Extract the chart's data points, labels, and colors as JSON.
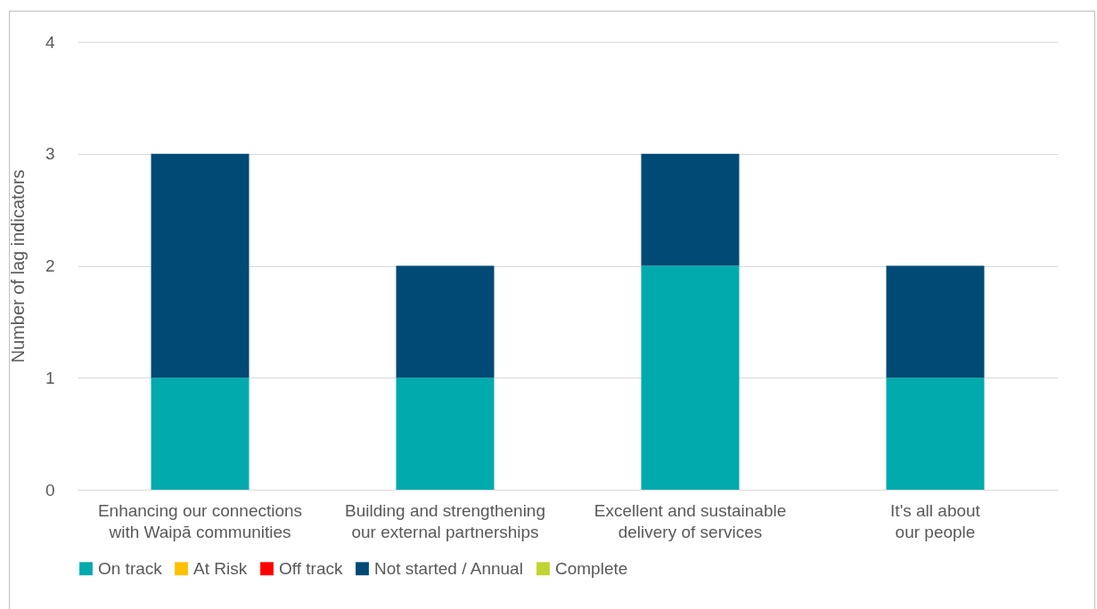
{
  "chart_data": {
    "type": "bar",
    "stacked": true,
    "ylabel": "Number of lag indicators",
    "categories": [
      "Enhancing our connections with Waipā communities",
      "Building and strengthening our external partnerships",
      "Excellent and sustainable delivery of services",
      "It's all about our people"
    ],
    "series": [
      {
        "name": "On track",
        "color": "#00aaad",
        "values": [
          1,
          1,
          2,
          1
        ]
      },
      {
        "name": "At Risk",
        "color": "#ffc000",
        "values": [
          0,
          0,
          0,
          0
        ]
      },
      {
        "name": "Off track",
        "color": "#ff0000",
        "values": [
          0,
          0,
          0,
          0
        ]
      },
      {
        "name": "Not started / Annual",
        "color": "#004a75",
        "values": [
          2,
          1,
          1,
          1
        ]
      },
      {
        "name": "Complete",
        "color": "#c0d531",
        "values": [
          0,
          0,
          0,
          0
        ]
      }
    ],
    "ylim": [
      0,
      4
    ],
    "yticks": [
      0,
      1,
      2,
      3,
      4
    ],
    "grid": "y",
    "legend": "bottom"
  }
}
